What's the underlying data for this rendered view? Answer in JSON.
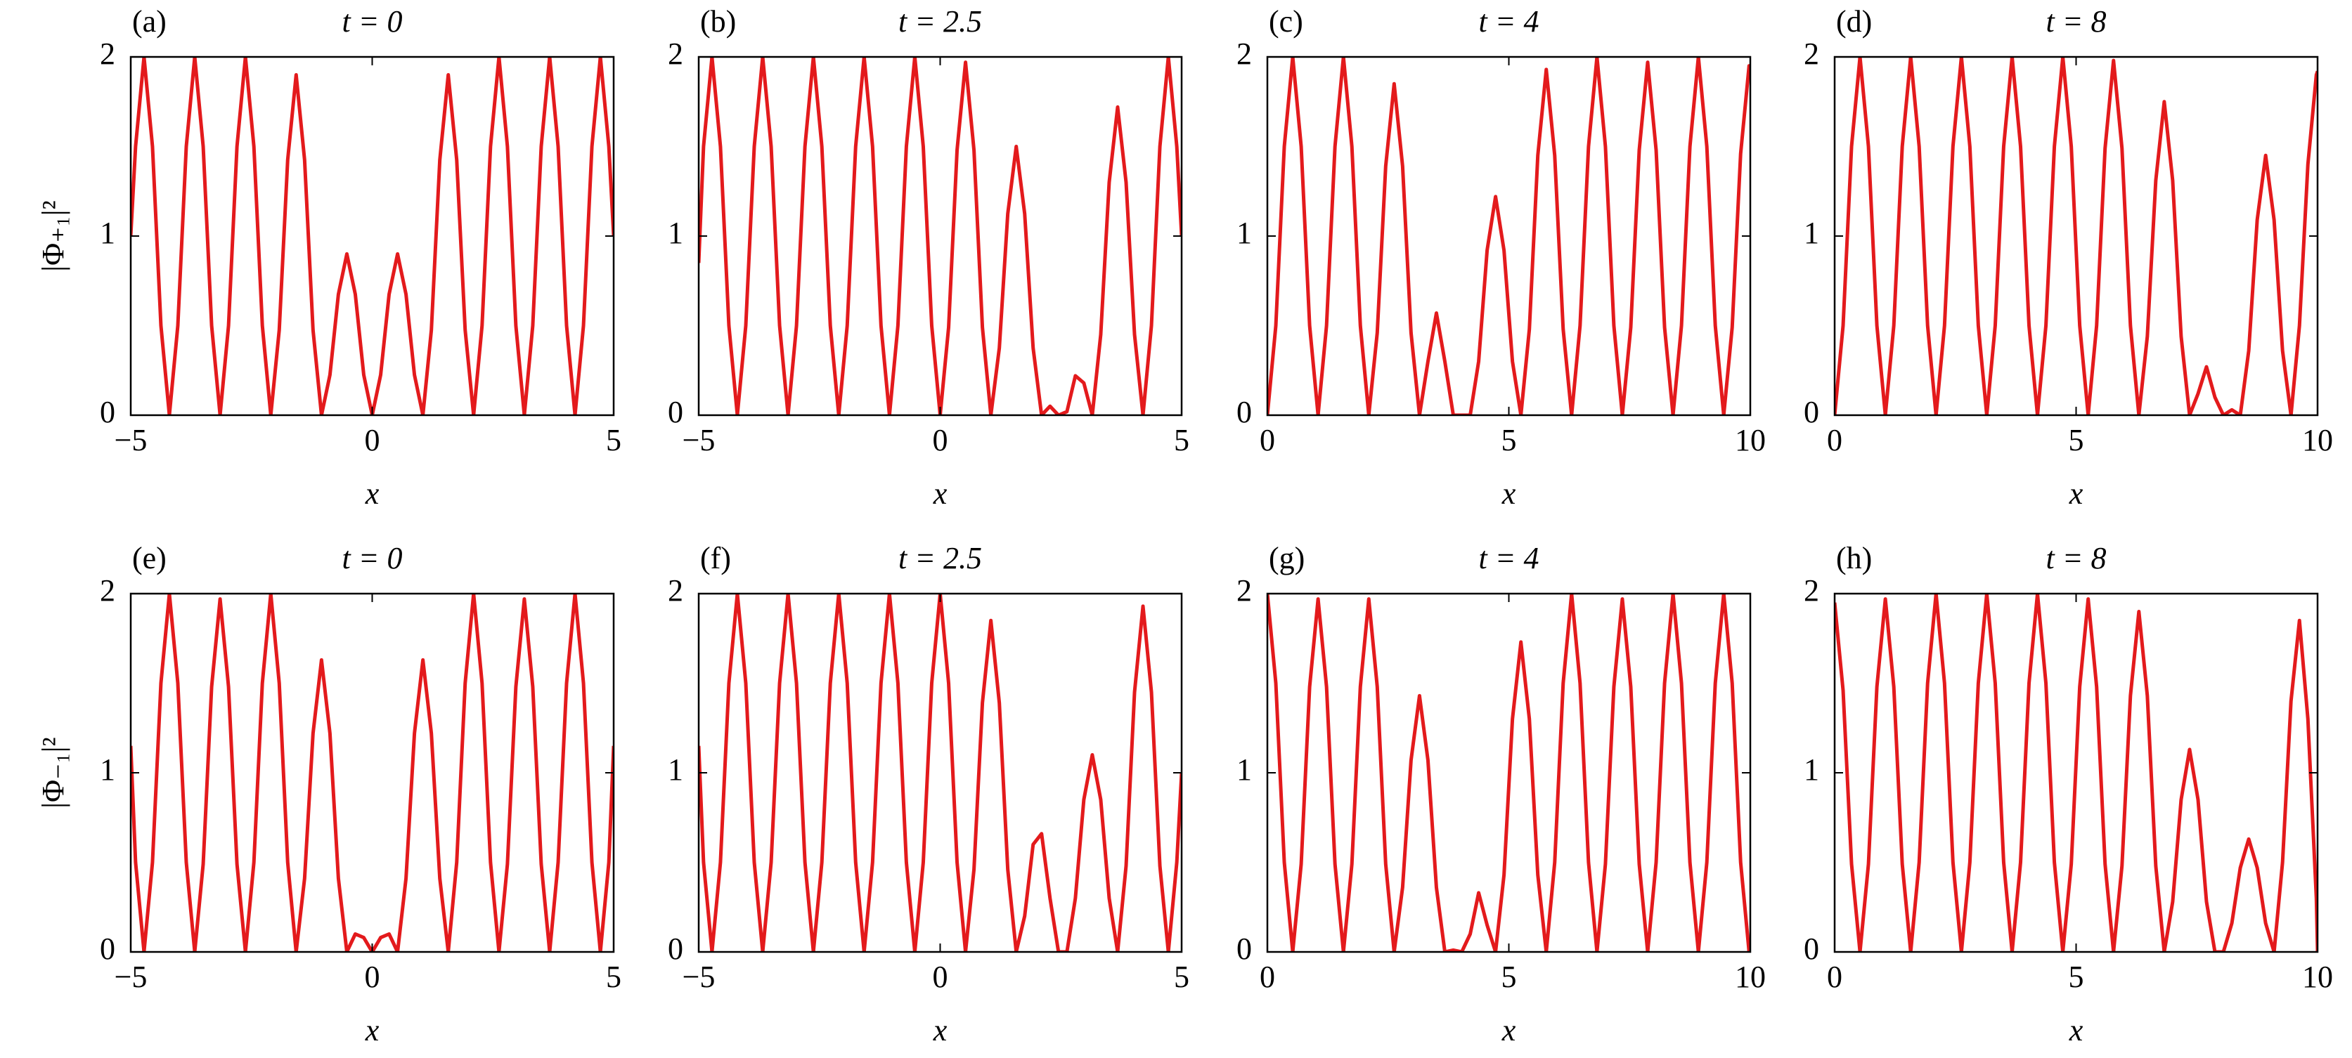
{
  "chart_data": [
    {
      "type": "line",
      "panel": "(a)",
      "title": "t = 0",
      "ylabel": "|Φ₊₁|²",
      "xlabel": "x",
      "color": "#e31a1c",
      "x": [
        -5,
        -4.9,
        -4.725,
        -4.55,
        -4.375,
        -4.2,
        -4.025,
        -3.85,
        -3.675,
        -3.5,
        -3.325,
        -3.15,
        -2.975,
        -2.8,
        -2.625,
        -2.45,
        -2.275,
        -2.1,
        -1.925,
        -1.75,
        -1.575,
        -1.4,
        -1.225,
        -1.05,
        -0.875,
        -0.7,
        -0.525,
        -0.35,
        -0.175,
        0,
        0.175,
        0.35,
        0.525,
        0.7,
        0.875,
        1.05,
        1.225,
        1.4,
        1.575,
        1.75,
        1.925,
        2.1,
        2.275,
        2.45,
        2.625,
        2.8,
        2.975,
        3.15,
        3.325,
        3.5,
        3.675,
        3.85,
        4.025,
        4.2,
        4.375,
        4.55,
        4.725,
        4.9,
        5
      ],
      "values": [
        1,
        1.5,
        2,
        1.5,
        0.5,
        0,
        0.5,
        1.5,
        2,
        1.5,
        0.5,
        0,
        0.5,
        1.5,
        2,
        1.5,
        0.5,
        0,
        0.475,
        1.425,
        1.9,
        1.425,
        0.475,
        0,
        0.225,
        0.675,
        0.9,
        0.675,
        0.225,
        0,
        0.225,
        0.675,
        0.9,
        0.675,
        0.225,
        0,
        0.475,
        1.425,
        1.9,
        1.425,
        0.475,
        0,
        0.5,
        1.5,
        2,
        1.5,
        0.5,
        0,
        0.5,
        1.5,
        2,
        1.5,
        0.5,
        0,
        0.5,
        1.5,
        2,
        1.5,
        1
      ],
      "xlim": [
        -5,
        5
      ],
      "xticks": [
        {
          "value": -5,
          "label": "−5"
        },
        0,
        5
      ],
      "ylim": [
        0,
        2
      ],
      "yticks": [
        0,
        1,
        2
      ]
    },
    {
      "type": "line",
      "panel": "(b)",
      "title": "t = 2.5",
      "xlabel": "x",
      "color": "#e31a1c",
      "x": [
        -5,
        -4.9,
        -4.725,
        -4.55,
        -4.375,
        -4.2,
        -4.025,
        -3.85,
        -3.675,
        -3.5,
        -3.325,
        -3.15,
        -2.975,
        -2.8,
        -2.625,
        -2.45,
        -2.275,
        -2.1,
        -1.925,
        -1.75,
        -1.575,
        -1.4,
        -1.225,
        -1.05,
        -0.875,
        -0.7,
        -0.525,
        -0.35,
        -0.175,
        0,
        0.175,
        0.35,
        0.525,
        0.7,
        0.875,
        1.05,
        1.225,
        1.4,
        1.575,
        1.75,
        1.925,
        2.1,
        2.275,
        2.45,
        2.625,
        2.8,
        2.975,
        3.15,
        3.325,
        3.5,
        3.675,
        3.85,
        4.025,
        4.2,
        4.375,
        4.55,
        4.725,
        4.9,
        5
      ],
      "values": [
        0.85,
        1.5,
        2,
        1.5,
        0.5,
        0,
        0.5,
        1.5,
        2,
        1.5,
        0.5,
        0,
        0.5,
        1.5,
        2,
        1.5,
        0.5,
        0,
        0.5,
        1.5,
        2,
        1.5,
        0.5,
        0,
        0.5,
        1.5,
        2,
        1.5,
        0.5,
        0,
        0.49,
        1.48,
        1.97,
        1.48,
        0.49,
        0,
        0.375,
        1.125,
        1.5,
        1.125,
        0.375,
        0,
        0.05,
        0,
        0.02,
        0.22,
        0.18,
        0,
        0.45,
        1.3,
        1.72,
        1.3,
        0.45,
        0,
        0.5,
        1.5,
        2,
        1.5,
        1
      ],
      "xlim": [
        -5,
        5
      ],
      "xticks": [
        {
          "value": -5,
          "label": "−5"
        },
        0,
        5
      ],
      "ylim": [
        0,
        2
      ],
      "yticks": [
        0,
        1,
        2
      ]
    },
    {
      "type": "line",
      "panel": "(c)",
      "title": "t = 4",
      "xlabel": "x",
      "color": "#e31a1c",
      "x": [
        0,
        0.175,
        0.35,
        0.525,
        0.7,
        0.875,
        1.05,
        1.225,
        1.4,
        1.575,
        1.75,
        1.925,
        2.1,
        2.275,
        2.45,
        2.625,
        2.8,
        2.975,
        3.15,
        3.325,
        3.5,
        3.675,
        3.85,
        4.025,
        4.2,
        4.375,
        4.55,
        4.725,
        4.9,
        5.075,
        5.25,
        5.425,
        5.6,
        5.775,
        5.95,
        6.125,
        6.3,
        6.475,
        6.65,
        6.825,
        7,
        7.175,
        7.35,
        7.525,
        7.7,
        7.875,
        8.05,
        8.225,
        8.4,
        8.575,
        8.75,
        8.925,
        9.1,
        9.275,
        9.45,
        9.625,
        9.8,
        9.975,
        10
      ],
      "values": [
        0,
        0.5,
        1.5,
        2,
        1.5,
        0.5,
        0,
        0.5,
        1.5,
        2,
        1.5,
        0.5,
        0,
        0.46,
        1.39,
        1.85,
        1.39,
        0.46,
        0,
        0.3,
        0.57,
        0.3,
        0,
        0,
        0,
        0.3,
        0.92,
        1.22,
        0.92,
        0.3,
        0,
        0.48,
        1.45,
        1.93,
        1.45,
        0.48,
        0,
        0.5,
        1.5,
        2,
        1.5,
        0.5,
        0,
        0.49,
        1.48,
        1.97,
        1.48,
        0.49,
        0,
        0.5,
        1.5,
        2,
        1.5,
        0.5,
        0,
        0.49,
        1.46,
        1.95,
        1.95
      ],
      "xlim": [
        0,
        10
      ],
      "xticks": [
        0,
        5,
        10
      ],
      "ylim": [
        0,
        2
      ],
      "yticks": [
        0,
        1,
        2
      ]
    },
    {
      "type": "line",
      "panel": "(d)",
      "title": "t = 8",
      "xlabel": "x",
      "color": "#e31a1c",
      "x": [
        0,
        0.175,
        0.35,
        0.525,
        0.7,
        0.875,
        1.05,
        1.225,
        1.4,
        1.575,
        1.75,
        1.925,
        2.1,
        2.275,
        2.45,
        2.625,
        2.8,
        2.975,
        3.15,
        3.325,
        3.5,
        3.675,
        3.85,
        4.025,
        4.2,
        4.375,
        4.55,
        4.725,
        4.9,
        5.075,
        5.25,
        5.425,
        5.6,
        5.775,
        5.95,
        6.125,
        6.3,
        6.475,
        6.65,
        6.825,
        7,
        7.175,
        7.35,
        7.525,
        7.7,
        7.875,
        8.05,
        8.225,
        8.4,
        8.575,
        8.75,
        8.925,
        9.1,
        9.275,
        9.45,
        9.625,
        9.8,
        9.975,
        10
      ],
      "values": [
        0,
        0.5,
        1.5,
        2,
        1.5,
        0.5,
        0,
        0.5,
        1.5,
        2,
        1.5,
        0.5,
        0,
        0.5,
        1.5,
        2,
        1.5,
        0.5,
        0,
        0.5,
        1.5,
        2,
        1.5,
        0.5,
        0,
        0.5,
        1.5,
        2,
        1.5,
        0.5,
        0,
        0.5,
        1.49,
        1.98,
        1.49,
        0.5,
        0,
        0.44,
        1.31,
        1.75,
        1.31,
        0.44,
        0,
        0.12,
        0.27,
        0.1,
        0,
        0.03,
        0,
        0.36,
        1.09,
        1.45,
        1.09,
        0.36,
        0,
        0.5,
        1.4,
        1.9,
        1.92
      ],
      "xlim": [
        0,
        10
      ],
      "xticks": [
        0,
        5,
        10
      ],
      "ylim": [
        0,
        2
      ],
      "yticks": [
        0,
        1,
        2
      ]
    },
    {
      "type": "line",
      "panel": "(e)",
      "title": "t = 0",
      "ylabel": "|Φ₋₁|²",
      "xlabel": "x",
      "color": "#e31a1c",
      "x": [
        -5,
        -4.9,
        -4.725,
        -4.55,
        -4.375,
        -4.2,
        -4.025,
        -3.85,
        -3.675,
        -3.5,
        -3.325,
        -3.15,
        -2.975,
        -2.8,
        -2.625,
        -2.45,
        -2.275,
        -2.1,
        -1.925,
        -1.75,
        -1.575,
        -1.4,
        -1.225,
        -1.05,
        -0.875,
        -0.7,
        -0.525,
        -0.35,
        -0.175,
        0,
        0.175,
        0.35,
        0.525,
        0.7,
        0.875,
        1.05,
        1.225,
        1.4,
        1.575,
        1.75,
        1.925,
        2.1,
        2.275,
        2.45,
        2.625,
        2.8,
        2.975,
        3.15,
        3.325,
        3.5,
        3.675,
        3.85,
        4.025,
        4.2,
        4.375,
        4.55,
        4.725,
        4.9,
        5
      ],
      "values": [
        1.15,
        0.5,
        0,
        0.5,
        1.5,
        2,
        1.5,
        0.5,
        0,
        0.49,
        1.48,
        1.97,
        1.48,
        0.49,
        0,
        0.5,
        1.5,
        2,
        1.5,
        0.5,
        0,
        0.41,
        1.22,
        1.63,
        1.22,
        0.41,
        0,
        0.1,
        0.08,
        0,
        0.08,
        0.1,
        0,
        0.41,
        1.22,
        1.63,
        1.22,
        0.41,
        0,
        0.5,
        1.5,
        2,
        1.5,
        0.5,
        0,
        0.49,
        1.48,
        1.97,
        1.48,
        0.49,
        0,
        0.5,
        1.5,
        2,
        1.5,
        0.5,
        0,
        0.5,
        1.15
      ],
      "xlim": [
        -5,
        5
      ],
      "xticks": [
        {
          "value": -5,
          "label": "−5"
        },
        0,
        5
      ],
      "ylim": [
        0,
        2
      ],
      "yticks": [
        0,
        1,
        2
      ]
    },
    {
      "type": "line",
      "panel": "(f)",
      "title": "t = 2.5",
      "xlabel": "x",
      "color": "#e31a1c",
      "x": [
        -5,
        -4.9,
        -4.725,
        -4.55,
        -4.375,
        -4.2,
        -4.025,
        -3.85,
        -3.675,
        -3.5,
        -3.325,
        -3.15,
        -2.975,
        -2.8,
        -2.625,
        -2.45,
        -2.275,
        -2.1,
        -1.925,
        -1.75,
        -1.575,
        -1.4,
        -1.225,
        -1.05,
        -0.875,
        -0.7,
        -0.525,
        -0.35,
        -0.175,
        0,
        0.175,
        0.35,
        0.525,
        0.7,
        0.875,
        1.05,
        1.225,
        1.4,
        1.575,
        1.75,
        1.925,
        2.1,
        2.275,
        2.45,
        2.625,
        2.8,
        2.975,
        3.15,
        3.325,
        3.5,
        3.675,
        3.85,
        4.025,
        4.2,
        4.375,
        4.55,
        4.725,
        4.9,
        5
      ],
      "values": [
        1.15,
        0.5,
        0,
        0.5,
        1.5,
        2,
        1.5,
        0.5,
        0,
        0.5,
        1.5,
        2,
        1.5,
        0.5,
        0,
        0.5,
        1.5,
        2,
        1.5,
        0.5,
        0,
        0.5,
        1.5,
        2,
        1.5,
        0.5,
        0,
        0.5,
        1.5,
        2,
        1.5,
        0.5,
        0,
        0.46,
        1.39,
        1.85,
        1.39,
        0.46,
        0,
        0.2,
        0.6,
        0.66,
        0.3,
        0,
        0,
        0.3,
        0.85,
        1.1,
        0.85,
        0.3,
        0,
        0.48,
        1.45,
        1.93,
        1.45,
        0.48,
        0,
        0.5,
        1
      ],
      "xlim": [
        -5,
        5
      ],
      "xticks": [
        {
          "value": -5,
          "label": "−5"
        },
        0,
        5
      ],
      "ylim": [
        0,
        2
      ],
      "yticks": [
        0,
        1,
        2
      ]
    },
    {
      "type": "line",
      "panel": "(g)",
      "title": "t = 4",
      "xlabel": "x",
      "color": "#e31a1c",
      "x": [
        0,
        0.175,
        0.35,
        0.525,
        0.7,
        0.875,
        1.05,
        1.225,
        1.4,
        1.575,
        1.75,
        1.925,
        2.1,
        2.275,
        2.45,
        2.625,
        2.8,
        2.975,
        3.15,
        3.325,
        3.5,
        3.675,
        3.85,
        4.025,
        4.2,
        4.375,
        4.55,
        4.725,
        4.9,
        5.075,
        5.25,
        5.425,
        5.6,
        5.775,
        5.95,
        6.125,
        6.3,
        6.475,
        6.65,
        6.825,
        7,
        7.175,
        7.35,
        7.525,
        7.7,
        7.875,
        8.05,
        8.225,
        8.4,
        8.575,
        8.75,
        8.925,
        9.1,
        9.275,
        9.45,
        9.625,
        9.8,
        9.975,
        10
      ],
      "values": [
        2,
        1.5,
        0.5,
        0,
        0.49,
        1.48,
        1.97,
        1.48,
        0.49,
        0,
        0.49,
        1.48,
        1.97,
        1.48,
        0.49,
        0,
        0.36,
        1.07,
        1.43,
        1.07,
        0.36,
        0,
        0.01,
        0,
        0.1,
        0.33,
        0.15,
        0,
        0.43,
        1.3,
        1.73,
        1.3,
        0.43,
        0,
        0.5,
        1.5,
        2,
        1.5,
        0.5,
        0,
        0.49,
        1.48,
        1.97,
        1.48,
        0.49,
        0,
        0.5,
        1.5,
        2,
        1.5,
        0.5,
        0,
        0.5,
        1.5,
        2,
        1.5,
        0.5,
        0,
        0
      ],
      "xlim": [
        0,
        10
      ],
      "xticks": [
        0,
        5,
        10
      ],
      "ylim": [
        0,
        2
      ],
      "yticks": [
        0,
        1,
        2
      ]
    },
    {
      "type": "line",
      "panel": "(h)",
      "title": "t = 8",
      "xlabel": "x",
      "color": "#e31a1c",
      "x": [
        0,
        0.175,
        0.35,
        0.525,
        0.7,
        0.875,
        1.05,
        1.225,
        1.4,
        1.575,
        1.75,
        1.925,
        2.1,
        2.275,
        2.45,
        2.625,
        2.8,
        2.975,
        3.15,
        3.325,
        3.5,
        3.675,
        3.85,
        4.025,
        4.2,
        4.375,
        4.55,
        4.725,
        4.9,
        5.075,
        5.25,
        5.425,
        5.6,
        5.775,
        5.95,
        6.125,
        6.3,
        6.475,
        6.65,
        6.825,
        7,
        7.175,
        7.35,
        7.525,
        7.7,
        7.875,
        8.05,
        8.225,
        8.4,
        8.575,
        8.75,
        8.925,
        9.1,
        9.275,
        9.45,
        9.625,
        9.8,
        9.975,
        10
      ],
      "values": [
        1.95,
        1.46,
        0.49,
        0,
        0.49,
        1.48,
        1.97,
        1.48,
        0.49,
        0,
        0.5,
        1.5,
        2,
        1.5,
        0.5,
        0,
        0.5,
        1.5,
        2,
        1.5,
        0.5,
        0,
        0.5,
        1.5,
        2,
        1.5,
        0.5,
        0,
        0.49,
        1.48,
        1.97,
        1.48,
        0.49,
        0,
        0.48,
        1.43,
        1.9,
        1.43,
        0.48,
        0,
        0.28,
        0.85,
        1.13,
        0.85,
        0.28,
        0,
        0,
        0.16,
        0.47,
        0.63,
        0.47,
        0.16,
        0,
        0.5,
        1.4,
        1.85,
        1.3,
        0.3,
        0
      ],
      "xlim": [
        0,
        10
      ],
      "xticks": [
        0,
        5,
        10
      ],
      "ylim": [
        0,
        2
      ],
      "yticks": [
        0,
        1,
        2
      ]
    }
  ]
}
